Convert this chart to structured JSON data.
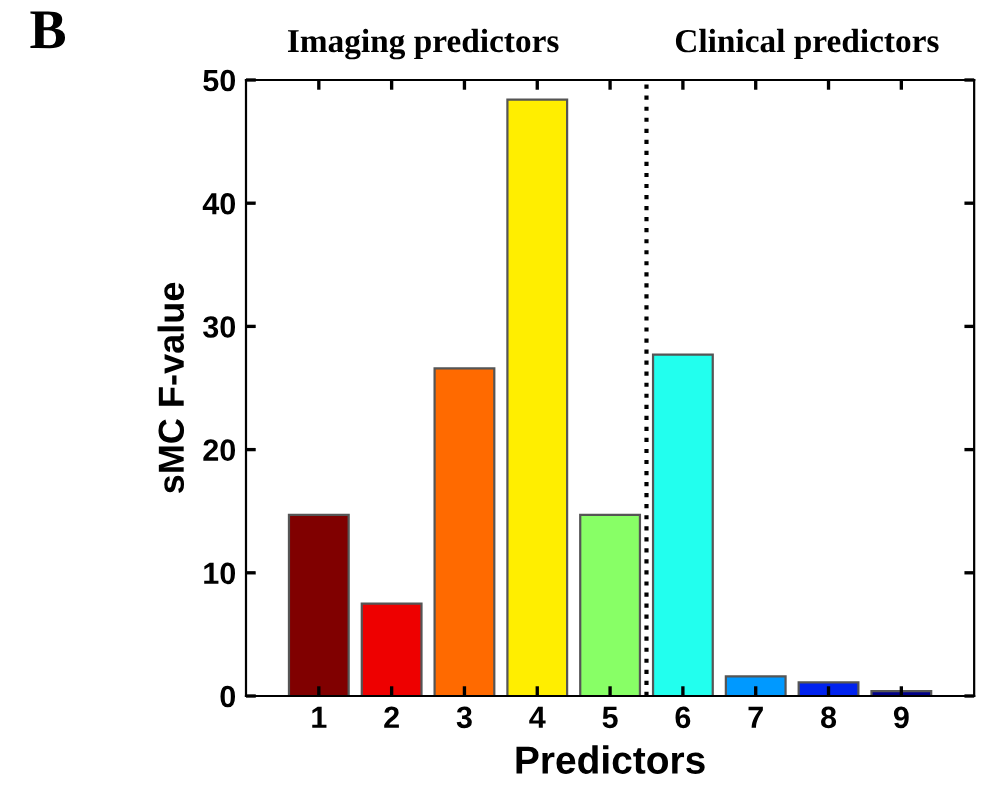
{
  "chart_data": {
    "type": "bar",
    "xlabel": "Predictors",
    "ylabel": "sMC F-value",
    "x": [
      1,
      2,
      3,
      4,
      5,
      6,
      7,
      8,
      9
    ],
    "values": [
      14.7,
      7.5,
      26.6,
      48.4,
      14.7,
      27.7,
      1.6,
      1.1,
      0.4
    ],
    "colors": [
      "#800000",
      "#ee0000",
      "#ff6a00",
      "#ffee00",
      "#88ff66",
      "#22ffee",
      "#0099ff",
      "#0022ee",
      "#000088"
    ],
    "xlim": [
      0,
      10
    ],
    "xticks": [
      1,
      2,
      3,
      4,
      5,
      6,
      7,
      8,
      9
    ],
    "ylim": [
      0,
      50
    ],
    "yticks": [
      0,
      10,
      20,
      30,
      40,
      50
    ],
    "ref_lines": [
      {
        "axis": "x",
        "value": 5.5,
        "color": "#000000",
        "line_style": "dotted"
      }
    ],
    "annotations": [
      "B",
      "Imaging predictors",
      "Clinical predictors"
    ],
    "grid": false
  }
}
